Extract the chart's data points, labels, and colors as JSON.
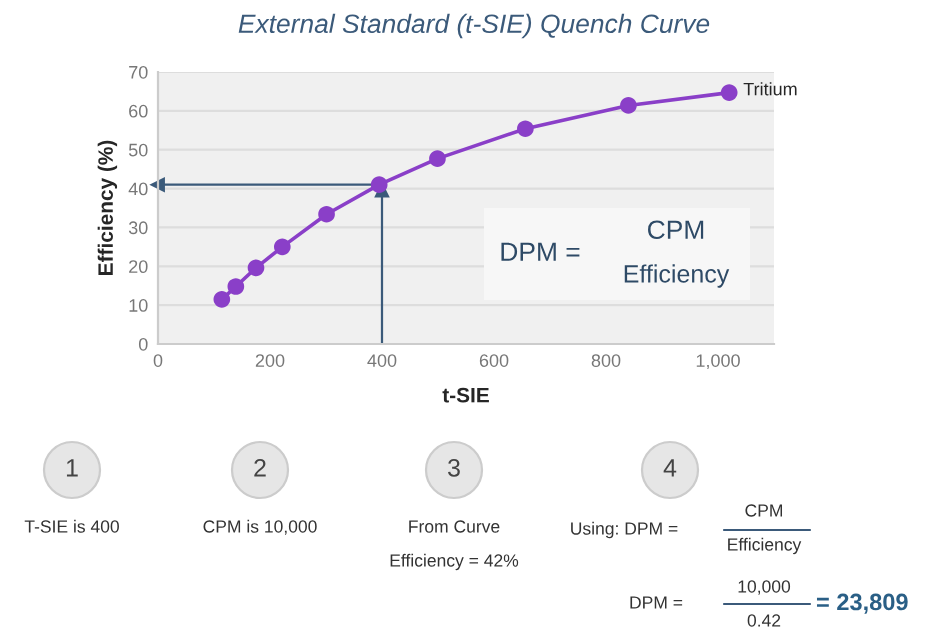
{
  "chart_data": {
    "type": "line",
    "title": "External Standard (t-SIE) Quench Curve",
    "xlabel": "t-SIE",
    "ylabel": "Efficiency (%)",
    "x": [
      114,
      139,
      175,
      222,
      301,
      395,
      499,
      656,
      840,
      1020
    ],
    "series": [
      {
        "name": "Tritium",
        "color": "#8a3fc8",
        "values": [
          11.5,
          14.8,
          19.6,
          25,
          33.4,
          41,
          47.7,
          55.4,
          61.4,
          64.7
        ]
      }
    ],
    "xlim": [
      0,
      1100
    ],
    "xticks": [
      0,
      200,
      400,
      600,
      {
        "value": 800,
        "label": "800"
      },
      {
        "value": 1000,
        "label": "1,000"
      }
    ],
    "ylim": [
      0,
      70
    ],
    "yticks": [
      0,
      10,
      20,
      30,
      40,
      50,
      60,
      70
    ],
    "grid": "y",
    "marker": "circle",
    "line_style": "solid",
    "legend": false,
    "ref_lines": [
      {
        "axis": "x",
        "value": 400,
        "color": "#3b5a7a"
      },
      {
        "axis": "y",
        "value": 41,
        "color": "#3b5a7a"
      }
    ],
    "annotations": [
      "DPM =",
      "CPM",
      "Efficiency",
      "1",
      "2",
      "3",
      "4",
      "T-SIE is 400",
      "CPM is 10,000",
      "From Curve",
      "Efficiency = 42%",
      "Using: DPM =",
      "CPM",
      "Efficiency",
      "DPM =",
      "10,000",
      "0.42",
      "= 23,809"
    ]
  }
}
